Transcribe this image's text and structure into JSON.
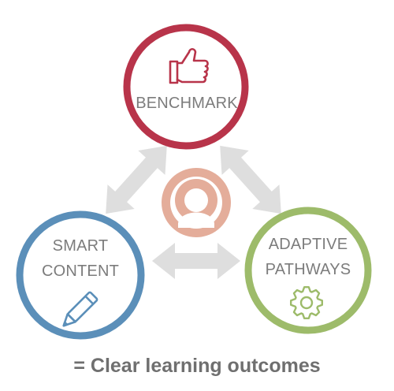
{
  "colors": {
    "benchmark": "#b8344a",
    "smart_content": "#5b8fb9",
    "adaptive_pathways": "#9dbb6a",
    "center": "#e4ad9a",
    "arrow": "#dedede",
    "label": "#7c7c7c"
  },
  "nodes": {
    "benchmark": {
      "label": "BENCHMARK",
      "icon": "thumbs-up-icon"
    },
    "smart_content": {
      "label_line1": "SMART",
      "label_line2": "CONTENT",
      "icon": "pencil-icon"
    },
    "adaptive_pathways": {
      "label_line1": "ADAPTIVE",
      "label_line2": "PATHWAYS",
      "icon": "gear-icon"
    }
  },
  "center": {
    "icon": "user-icon"
  },
  "caption": "= Clear learning outcomes"
}
